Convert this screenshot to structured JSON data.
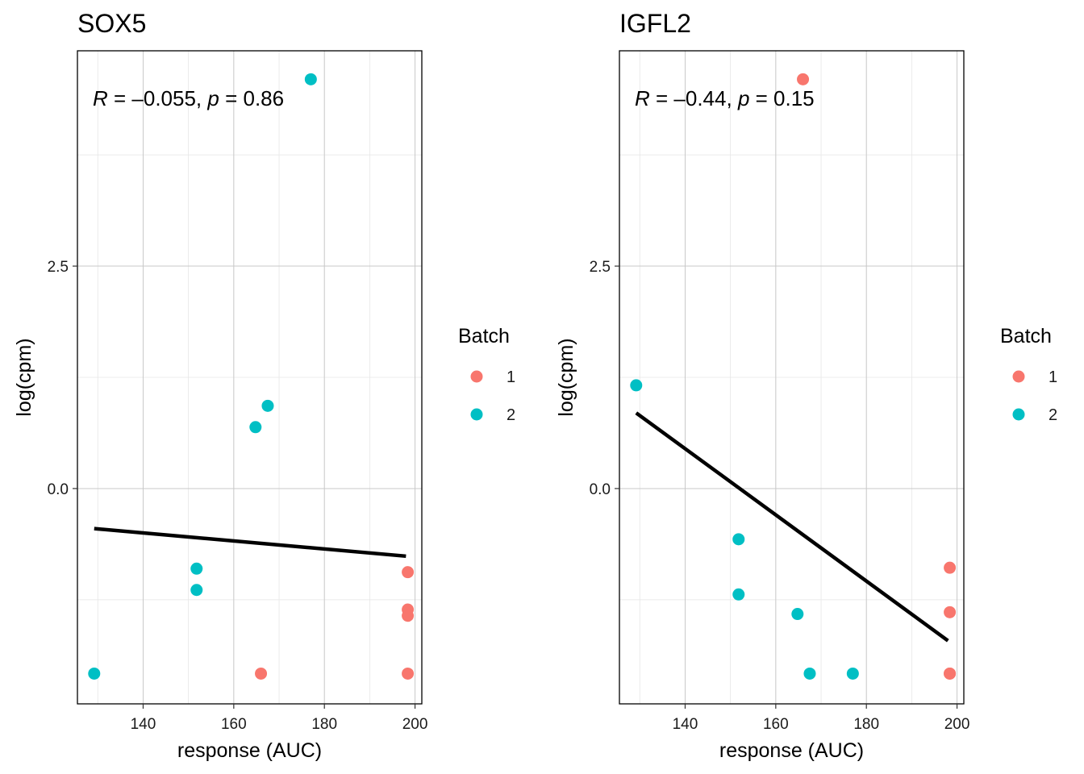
{
  "colors": {
    "batch_1": "#F8766D",
    "batch_2": "#00BFC4"
  },
  "legend": {
    "title": "Batch",
    "items": [
      {
        "label": "1",
        "color": "#F8766D"
      },
      {
        "label": "2",
        "color": "#00BFC4"
      }
    ]
  },
  "chart_data": [
    {
      "type": "scatter",
      "title": "SOX5",
      "xlabel": "response (AUC)",
      "ylabel": "log(cpm)",
      "xlim": [
        125.5,
        201.5
      ],
      "ylim": [
        -2.42,
        4.92
      ],
      "x_ticks": [
        140,
        160,
        180,
        200
      ],
      "x_tick_labels": [
        "140",
        "160",
        "180",
        "200"
      ],
      "y_ticks": [
        0,
        2.5
      ],
      "y_tick_labels": [
        "0.0",
        "2.5"
      ],
      "x_minor_ticks": [
        130,
        150,
        170,
        190
      ],
      "y_minor_ticks": [
        -1.25,
        1.25,
        3.75
      ],
      "grid": true,
      "legend_position": "right",
      "annotation": {
        "r_label": "R",
        "r_value": " = –0.055, ",
        "p_label": "p",
        "p_value": " = 0.86"
      },
      "fit_line": {
        "x": [
          129.2,
          198.0
        ],
        "y": [
          -0.45,
          -0.76
        ]
      },
      "series": [
        {
          "name": "1",
          "color": "#F8766D",
          "x": [
            198.4,
            198.4,
            198.4,
            198.4,
            166.0
          ],
          "y": [
            -0.94,
            -1.36,
            -1.43,
            -2.08,
            -2.08
          ]
        },
        {
          "name": "2",
          "color": "#00BFC4",
          "x": [
            177.0,
            167.5,
            164.8,
            151.8,
            151.8,
            129.2
          ],
          "y": [
            4.6,
            0.93,
            0.69,
            -0.9,
            -1.14,
            -2.08
          ]
        }
      ]
    },
    {
      "type": "scatter",
      "title": "IGFL2",
      "xlabel": "response (AUC)",
      "ylabel": "log(cpm)",
      "xlim": [
        125.5,
        201.5
      ],
      "ylim": [
        -2.42,
        4.92
      ],
      "x_ticks": [
        140,
        160,
        180,
        200
      ],
      "x_tick_labels": [
        "140",
        "160",
        "180",
        "200"
      ],
      "y_ticks": [
        0,
        2.5
      ],
      "y_tick_labels": [
        "0.0",
        "2.5"
      ],
      "x_minor_ticks": [
        130,
        150,
        170,
        190
      ],
      "y_minor_ticks": [
        -1.25,
        1.25,
        3.75
      ],
      "grid": true,
      "legend_position": "right",
      "annotation": {
        "r_label": "R",
        "r_value": " = –0.44, ",
        "p_label": "p",
        "p_value": " = 0.15"
      },
      "fit_line": {
        "x": [
          129.2,
          198.0
        ],
        "y": [
          0.85,
          -1.71
        ]
      },
      "series": [
        {
          "name": "1",
          "color": "#F8766D",
          "x": [
            166.0,
            198.4,
            198.4,
            198.4,
            198.4
          ],
          "y": [
            4.6,
            -0.89,
            -1.39,
            -2.08,
            -2.08
          ]
        },
        {
          "name": "2",
          "color": "#00BFC4",
          "x": [
            129.2,
            151.8,
            151.8,
            164.8,
            167.5,
            177.0
          ],
          "y": [
            1.16,
            -0.57,
            -1.19,
            -1.41,
            -2.08,
            -2.08
          ]
        }
      ]
    }
  ]
}
